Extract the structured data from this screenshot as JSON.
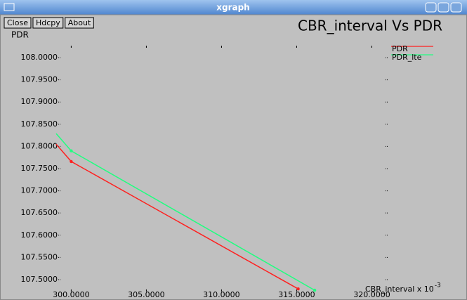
{
  "window": {
    "title": "xgraph",
    "buttons": [
      "Close",
      "Hdcpy",
      "About"
    ]
  },
  "chart_data": {
    "type": "line",
    "title": "CBR_interval Vs PDR",
    "y_label": "PDR",
    "x_label": "CBR_interval x 10",
    "x_label_exponent": "-3",
    "xlim": [
      299,
      321.1
    ],
    "ylim": [
      107.473,
      108.027
    ],
    "xticks": [
      {
        "value": 300,
        "label": "300.0000"
      },
      {
        "value": 305,
        "label": "305.0000"
      },
      {
        "value": 310,
        "label": "310.0000"
      },
      {
        "value": 315,
        "label": "315.0000"
      },
      {
        "value": 320,
        "label": "320.0000"
      }
    ],
    "yticks": [
      {
        "value": 108,
        "label": "108.0000"
      },
      {
        "value": 107.95,
        "label": "107.9500"
      },
      {
        "value": 107.9,
        "label": "107.9000"
      },
      {
        "value": 107.85,
        "label": "107.8500"
      },
      {
        "value": 107.8,
        "label": "107.8000"
      },
      {
        "value": 107.75,
        "label": "107.7500"
      },
      {
        "value": 107.7,
        "label": "107.7000"
      },
      {
        "value": 107.65,
        "label": "107.6500"
      },
      {
        "value": 107.6,
        "label": "107.6000"
      },
      {
        "value": 107.55,
        "label": "107.5500"
      },
      {
        "value": 107.5,
        "label": "107.5000"
      }
    ],
    "series": [
      {
        "name": "PDR",
        "color": "#ff2020",
        "x": [
          299,
          300,
          315.1
        ],
        "values": [
          107.805,
          107.766,
          107.479
        ]
      },
      {
        "name": "PDR_lte",
        "color": "#20ff80",
        "x": [
          299,
          300,
          316.2
        ],
        "values": [
          107.829,
          107.79,
          107.476
        ]
      }
    ]
  }
}
